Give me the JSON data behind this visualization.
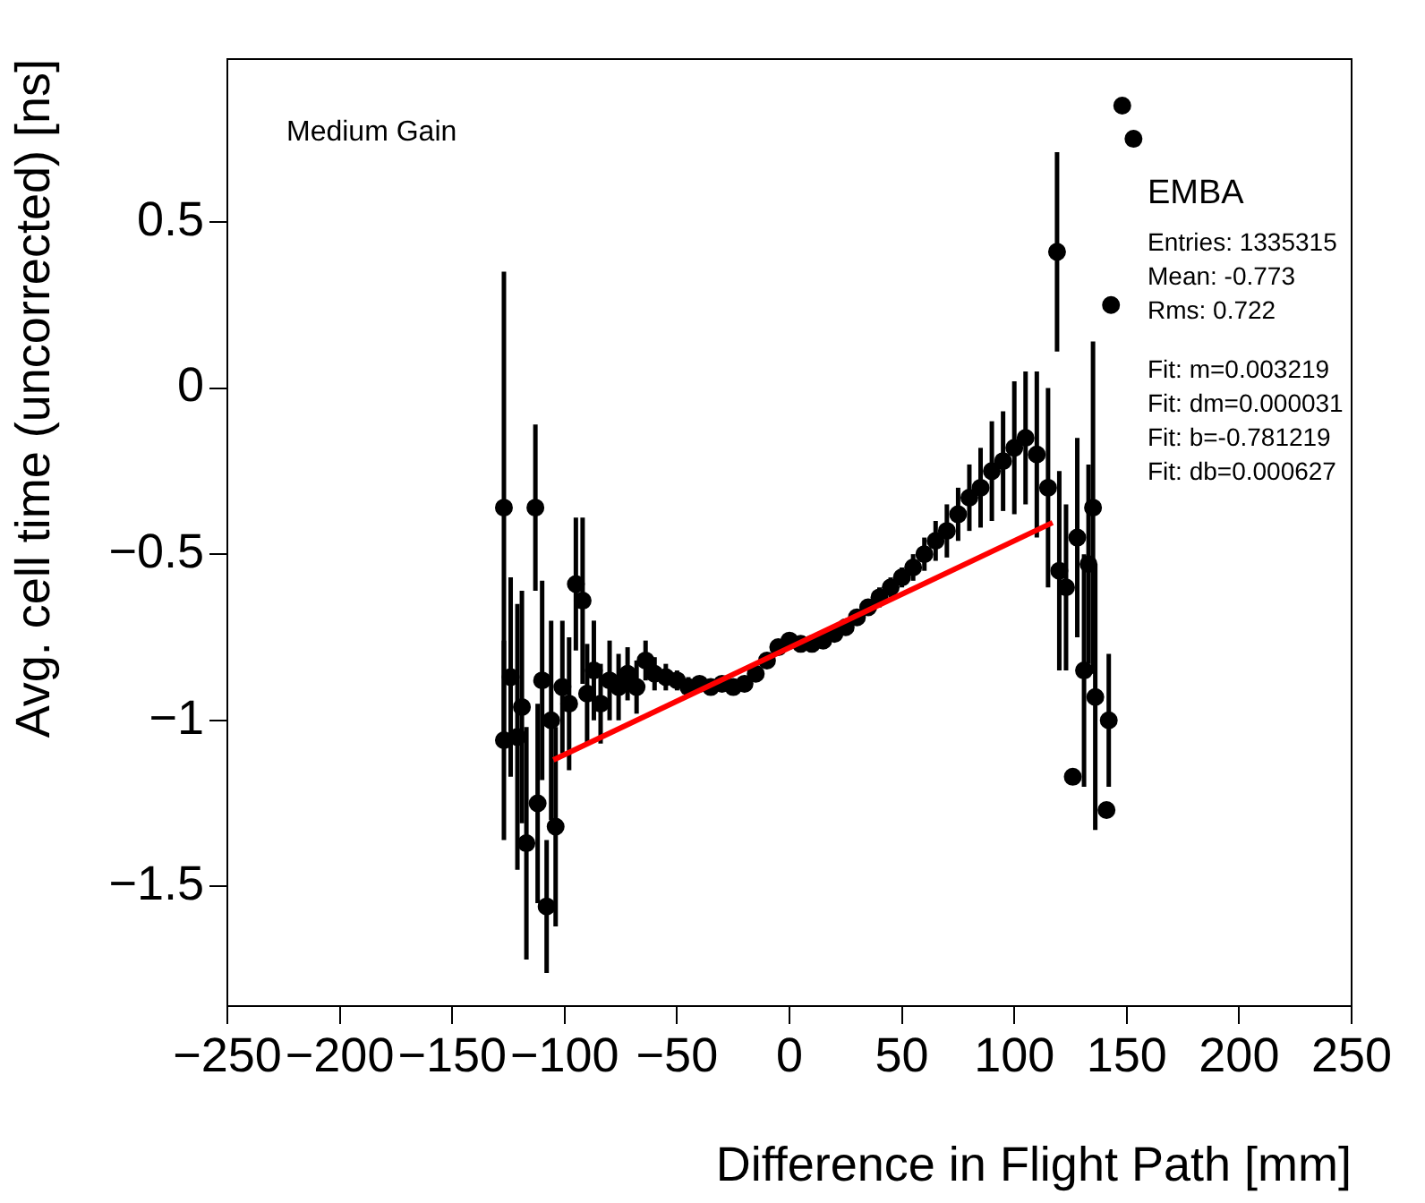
{
  "chart_data": {
    "type": "scatter",
    "xlabel": "Difference in Flight Path [mm]",
    "ylabel": "Avg. cell time (uncorrected) [ns]",
    "annotations": [
      "Medium Gain",
      "EMBA",
      "Entries: 1335315",
      "Mean: -0.773",
      "Rms: 0.722",
      "Fit: m=0.003219",
      "Fit: dm=0.000031",
      "Fit: b=-0.781219",
      "Fit: db=0.000627"
    ],
    "xlim": [
      -250,
      250
    ],
    "xticks": [
      -250,
      -200,
      -150,
      -100,
      -50,
      0,
      50,
      100,
      150,
      200,
      250
    ],
    "ylim": [
      -1.86,
      0.99
    ],
    "yticks": [
      -1.5,
      -1,
      -0.5,
      0,
      0.5
    ],
    "grid": false,
    "legend": false,
    "marker": "circle",
    "series": [
      {
        "color": "#000000",
        "x": [
          -127,
          -127,
          -124,
          -121,
          -119,
          -117,
          -113,
          -112,
          -110,
          -108,
          -106,
          -104,
          -101,
          -98,
          -95,
          -92,
          -90,
          -87,
          -84,
          -80,
          -76,
          -72,
          -68,
          -64,
          -60,
          -55,
          -50,
          -45,
          -40,
          -35,
          -30,
          -25,
          -20,
          -15,
          -10,
          -5,
          0,
          5,
          10,
          15,
          20,
          25,
          30,
          35,
          40,
          45,
          50,
          55,
          60,
          65,
          70,
          75,
          80,
          85,
          90,
          95,
          100,
          105,
          110,
          115,
          119,
          120,
          123,
          126,
          128,
          131,
          133,
          135,
          136,
          141,
          142,
          143,
          148,
          153
        ],
        "values": [
          -0.36,
          -1.06,
          -0.87,
          -1.05,
          -0.96,
          -1.37,
          -0.36,
          -1.25,
          -0.88,
          -1.56,
          -1.0,
          -1.32,
          -0.9,
          -0.95,
          -0.59,
          -0.64,
          -0.92,
          -0.85,
          -0.95,
          -0.88,
          -0.9,
          -0.86,
          -0.9,
          -0.82,
          -0.86,
          -0.87,
          -0.88,
          -0.9,
          -0.89,
          -0.9,
          -0.89,
          -0.9,
          -0.89,
          -0.86,
          -0.82,
          -0.78,
          -0.76,
          -0.77,
          -0.77,
          -0.76,
          -0.74,
          -0.72,
          -0.69,
          -0.66,
          -0.63,
          -0.6,
          -0.57,
          -0.54,
          -0.5,
          -0.46,
          -0.43,
          -0.38,
          -0.33,
          -0.3,
          -0.25,
          -0.22,
          -0.18,
          -0.15,
          -0.2,
          -0.3,
          0.41,
          -0.55,
          -0.6,
          -1.17,
          -0.45,
          -0.85,
          -0.53,
          -0.36,
          -0.93,
          -1.27,
          -1.0,
          0.25,
          0.85,
          0.75
        ],
        "errors": [
          0.71,
          0.3,
          0.3,
          0.4,
          0.35,
          0.35,
          0.25,
          0.3,
          0.3,
          0.2,
          0.3,
          0.3,
          0.2,
          0.2,
          0.2,
          0.25,
          0.15,
          0.15,
          0.12,
          0.12,
          0.1,
          0.08,
          0.08,
          0.06,
          0.05,
          0.04,
          0.03,
          0.03,
          0.02,
          0.02,
          0.02,
          0.02,
          0.02,
          0.02,
          0.02,
          0.02,
          0.02,
          0.02,
          0.02,
          0.02,
          0.02,
          0.02,
          0.02,
          0.02,
          0.03,
          0.03,
          0.03,
          0.04,
          0.05,
          0.06,
          0.08,
          0.08,
          0.1,
          0.12,
          0.15,
          0.15,
          0.2,
          0.2,
          0.25,
          0.3,
          0.3,
          0.3,
          0.25,
          null,
          0.3,
          0.35,
          0.3,
          0.5,
          0.4,
          null,
          0.2,
          null,
          null,
          null
        ]
      },
      {
        "type": "line",
        "marker": "none",
        "color": "#ff0000",
        "x": [
          -105,
          117
        ],
        "values": [
          -1.119,
          -0.405
        ]
      }
    ]
  }
}
